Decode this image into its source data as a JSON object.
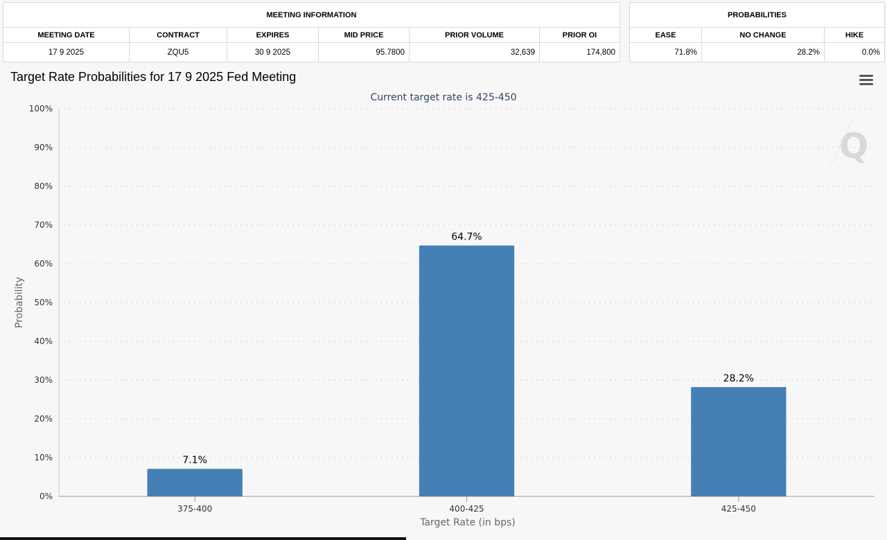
{
  "meeting_info": {
    "section_title": "MEETING INFORMATION",
    "headers": [
      "MEETING DATE",
      "CONTRACT",
      "EXPIRES",
      "MID PRICE",
      "PRIOR VOLUME",
      "PRIOR OI"
    ],
    "values": [
      "17 9 2025",
      "ZQU5",
      "30 9 2025",
      "95.7800",
      "32,639",
      "174,800"
    ]
  },
  "probabilities": {
    "section_title": "PROBABILITIES",
    "headers": [
      "EASE",
      "NO CHANGE",
      "HIKE"
    ],
    "values": [
      "71.8%",
      "28.2%",
      "0.0%"
    ]
  },
  "chart_header": {
    "title": "Target Rate Probabilities for 17 9 2025 Fed Meeting",
    "menu_icon": "hamburger-menu-icon",
    "watermark_icon": "q-logo-icon"
  },
  "chart_data": {
    "type": "bar",
    "title": "Target Rate Probabilities for 17 9 2025 Fed Meeting",
    "subtitle": "Current target rate is 425-450",
    "xlabel": "Target Rate (in bps)",
    "ylabel": "Probability",
    "categories": [
      "375-400",
      "400-425",
      "425-450"
    ],
    "values": [
      7.1,
      64.7,
      28.2
    ],
    "value_labels": [
      "7.1%",
      "64.7%",
      "28.2%"
    ],
    "ylim": [
      0,
      100
    ],
    "yticks": [
      "0%",
      "10%",
      "20%",
      "30%",
      "40%",
      "50%",
      "60%",
      "70%",
      "80%",
      "90%",
      "100%"
    ],
    "grid": true,
    "bar_color": "#4480b6",
    "subtitle_color": "#334466"
  }
}
